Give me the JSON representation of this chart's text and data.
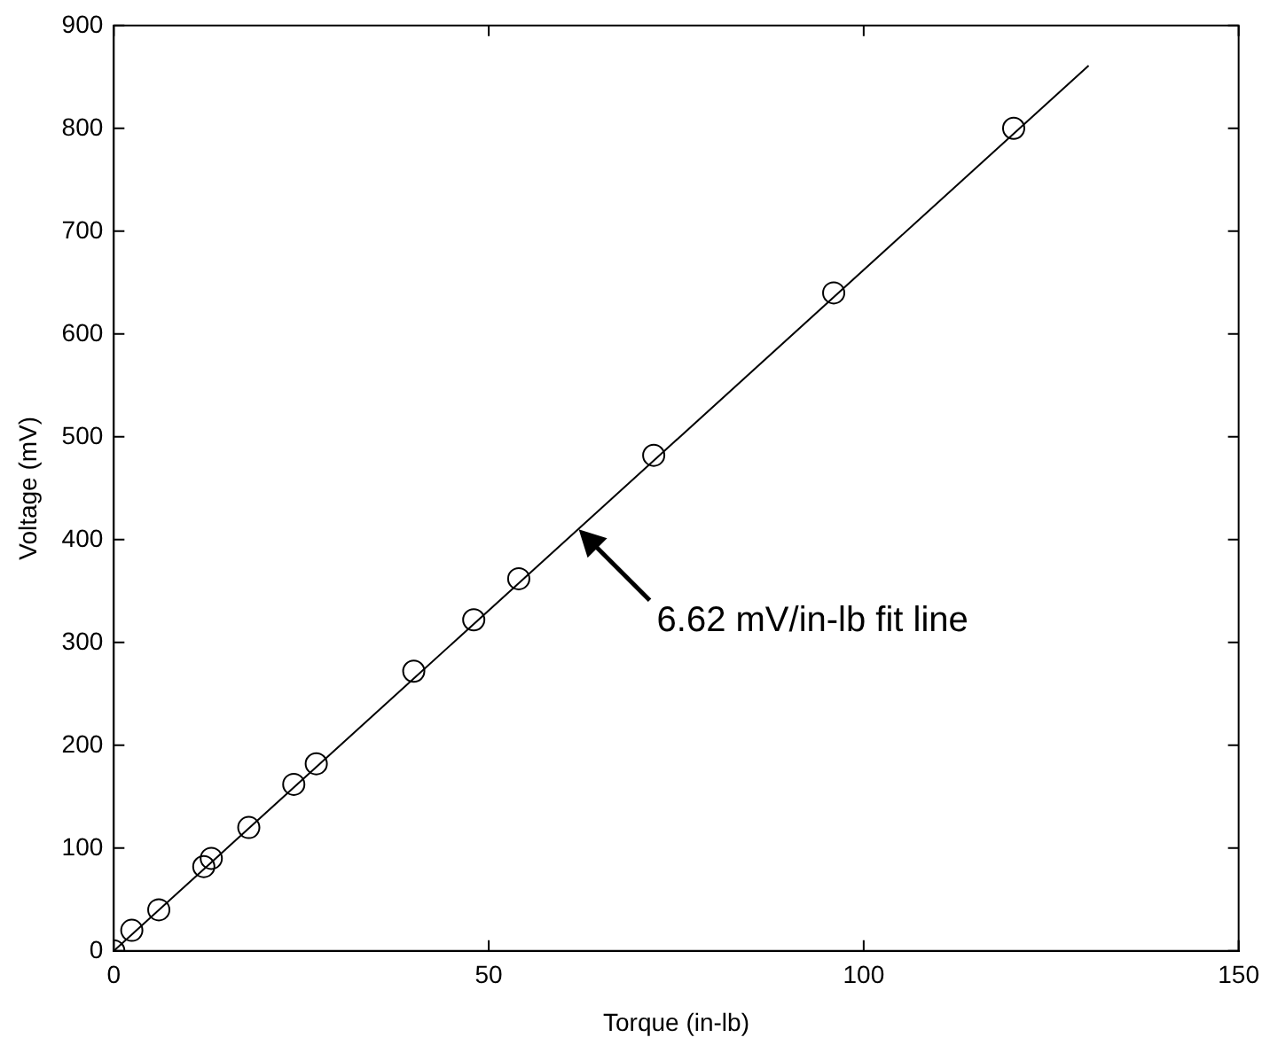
{
  "chart_data": {
    "type": "scatter",
    "xlabel": "Torque (in-lb)",
    "ylabel": "Voltage (mV)",
    "xlim": [
      0,
      150
    ],
    "xticks": [
      0,
      50,
      100,
      150
    ],
    "ylim": [
      0,
      900
    ],
    "yticks": [
      0,
      100,
      200,
      300,
      400,
      500,
      600,
      700,
      800,
      900
    ],
    "grid": false,
    "legend": false,
    "marker": "circle",
    "series": [
      {
        "color": "#000000",
        "x": [
          0,
          2.4,
          6,
          12,
          13,
          18,
          24,
          27,
          40,
          48,
          54,
          72,
          96,
          120
        ],
        "values": [
          0,
          20,
          40,
          82,
          90,
          120,
          162,
          182,
          272,
          322,
          362,
          482,
          640,
          800
        ]
      },
      {
        "type": "line",
        "color": "#000000",
        "marker": "none",
        "line_style": "solid",
        "x": [
          0,
          130
        ],
        "values": [
          0,
          861
        ]
      }
    ],
    "annotations": [
      {
        "text": "6.62 mV/in-lb fit line",
        "x": 62,
        "y": 410
      }
    ]
  }
}
